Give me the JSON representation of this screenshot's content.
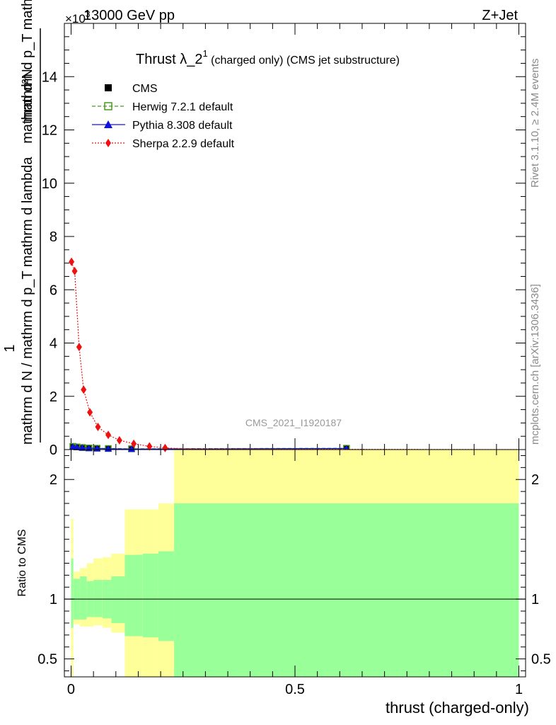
{
  "header": {
    "left": "13000 GeV pp",
    "right": "Z+Jet",
    "exponent_prefix": "×10",
    "exponent": "3"
  },
  "side_text": {
    "rivet": "Rivet 3.1.10, ≥ 2.4M events",
    "mcplots": "mcplots.cern.ch [arXiv:1306.3436]"
  },
  "colors": {
    "cms": "#000000",
    "herwig": "#4a9b1a",
    "pythia": "#1010e0",
    "sherpa": "#ee1111",
    "band_outer": "#ffff99",
    "band_inner": "#99ff99"
  },
  "chart_data": [
    {
      "type": "line",
      "title": "Thrust λ_2¹ (charged only) (CMS jet substructure)",
      "title_main": "Thrust λ_2",
      "title_sup": "1",
      "title_rest": " (charged only) (CMS jet substructure)",
      "analysis_label": "CMS_2021_I1920187",
      "ylabel_numerator": "1",
      "ylabel_denominator": "mathrm d N / mathrm d p_T mathrm d p_T mathrm d lambda",
      "ylabel_numerator_lines": [
        "mathrm d²N",
        "mathrm d p_T mathrm d lambda"
      ],
      "ylabel_denominator_lines": [
        "mathrm d N / mathrm d p_T mathrm d lambda"
      ],
      "ylabel_top": "mathrm d²N",
      "ylabel_mid": "mathrm d p_T mathrm d lambda",
      "ylabel_bottom": "mathrm d N / mathrm d p_T mathrm d lambda",
      "xlim": [
        -0.015,
        1.015
      ],
      "ylim": [
        0,
        16
      ],
      "y_scale_exponent": 3,
      "yticks": [
        0,
        2,
        4,
        6,
        8,
        10,
        12,
        14
      ],
      "yticklabels": [
        "0",
        "2",
        "4",
        "6",
        "8",
        "10",
        "12",
        "14"
      ],
      "legend_position": "top-left",
      "series": [
        {
          "name": "CMS",
          "marker": "square",
          "x": [
            0.004,
            0.013,
            0.025,
            0.04,
            0.058,
            0.083,
            0.135,
            0.615
          ],
          "y": [
            0.1,
            0.08,
            0.06,
            0.05,
            0.04,
            0.03,
            0.02,
            0.04
          ]
        },
        {
          "name": "Herwig 7.2.1 default",
          "marker": "open-square",
          "line": "dashed",
          "x": [
            0.004,
            0.013,
            0.025,
            0.04,
            0.058,
            0.083,
            0.135,
            0.615
          ],
          "y": [
            0.12,
            0.1,
            0.08,
            0.06,
            0.05,
            0.04,
            0.03,
            0.05
          ]
        },
        {
          "name": "Pythia 8.308 default",
          "marker": "triangle",
          "line": "solid",
          "x": [
            0.004,
            0.013,
            0.025,
            0.04,
            0.058,
            0.083,
            0.135,
            0.615
          ],
          "y": [
            0.11,
            0.09,
            0.07,
            0.05,
            0.04,
            0.03,
            0.02,
            0.04
          ]
        },
        {
          "name": "Sherpa 2.2.9 default",
          "marker": "diamond",
          "line": "dotted",
          "x": [
            0.001,
            0.008,
            0.018,
            0.028,
            0.042,
            0.06,
            0.083,
            0.108,
            0.14,
            0.175,
            0.21,
            0.26,
            0.35,
            0.5,
            0.62,
            0.8,
            1.0
          ],
          "y": [
            7.05,
            6.7,
            3.85,
            2.25,
            1.4,
            0.85,
            0.55,
            0.35,
            0.22,
            0.12,
            0.06,
            0.03,
            0.02,
            0.01,
            0.01,
            0.005,
            0.0
          ]
        }
      ]
    },
    {
      "type": "area",
      "ylabel": "Ratio to CMS",
      "xlabel": "thrust (charged-only)",
      "xlim": [
        -0.015,
        1.015
      ],
      "ylim": [
        0.35,
        2.25
      ],
      "xticks": [
        0,
        0.5,
        1
      ],
      "xticklabels": [
        "0",
        "0.5",
        "1"
      ],
      "yticks": [
        0.5,
        1,
        2
      ],
      "yticklabels": [
        "0.5",
        "1",
        "2"
      ],
      "reference_line": 1,
      "bins": [
        {
          "x0": 0.0,
          "x1": 0.005,
          "inner": [
            0.76,
            1.34
          ],
          "outer": [
            0.15,
            1.67
          ]
        },
        {
          "x0": 0.005,
          "x1": 0.02,
          "inner": [
            0.83,
            1.17
          ],
          "outer": [
            0.79,
            1.23
          ]
        },
        {
          "x0": 0.02,
          "x1": 0.035,
          "inner": [
            0.83,
            1.19
          ],
          "outer": [
            0.77,
            1.26
          ]
        },
        {
          "x0": 0.035,
          "x1": 0.05,
          "inner": [
            0.85,
            1.15
          ],
          "outer": [
            0.77,
            1.3
          ]
        },
        {
          "x0": 0.05,
          "x1": 0.07,
          "inner": [
            0.85,
            1.16
          ],
          "outer": [
            0.78,
            1.34
          ]
        },
        {
          "x0": 0.07,
          "x1": 0.09,
          "inner": [
            0.84,
            1.16
          ],
          "outer": [
            0.76,
            1.35
          ]
        },
        {
          "x0": 0.09,
          "x1": 0.12,
          "inner": [
            0.8,
            1.19
          ],
          "outer": [
            0.72,
            1.38
          ]
        },
        {
          "x0": 0.12,
          "x1": 0.16,
          "inner": [
            0.69,
            1.37
          ],
          "outer": [
            0.0,
            1.75
          ]
        },
        {
          "x0": 0.16,
          "x1": 0.195,
          "inner": [
            0.68,
            1.38
          ],
          "outer": [
            0.0,
            1.75
          ]
        },
        {
          "x0": 0.195,
          "x1": 0.23,
          "inner": [
            0.65,
            1.4
          ],
          "outer": [
            0.0,
            1.8
          ]
        },
        {
          "x0": 0.23,
          "x1": 1.0,
          "inner": [
            0.0,
            1.8
          ],
          "outer": [
            0.0,
            2.5
          ]
        }
      ]
    }
  ]
}
